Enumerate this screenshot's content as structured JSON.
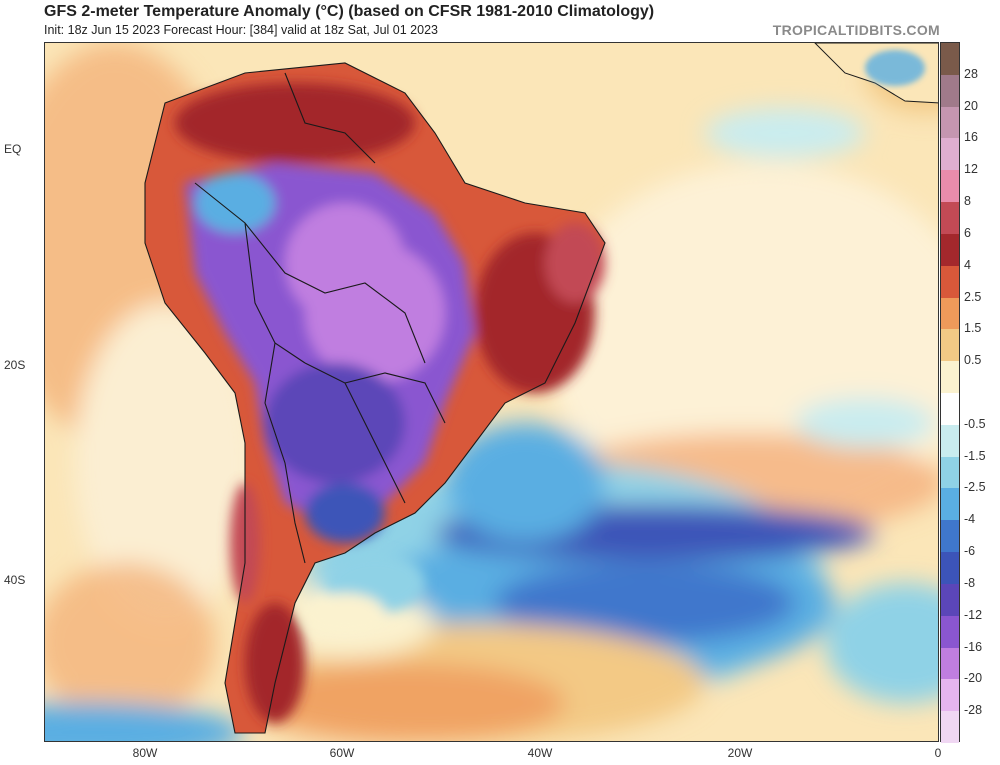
{
  "header": {
    "title": "GFS 2-meter Temperature Anomaly (°C) (based on CFSR 1981-2010 Climatology)",
    "subtitle": "Init: 18z Jun 15 2023   Forecast Hour: [384]   valid at 18z Sat, Jul 01 2023",
    "brand": "TROPICALTIDBITS.COM"
  },
  "map": {
    "lat_labels": [
      "EQ",
      "20S",
      "40S"
    ],
    "lon_labels": [
      "80W",
      "60W",
      "40W",
      "20W",
      "0"
    ]
  },
  "colorbar": {
    "labels": [
      "28",
      "20",
      "16",
      "12",
      "8",
      "6",
      "4",
      "2.5",
      "1.5",
      "0.5",
      "-0.5",
      "-1.5",
      "-2.5",
      "-4",
      "-6",
      "-8",
      "-12",
      "-16",
      "-20",
      "-28"
    ],
    "colors": [
      "#7a5a4a",
      "#a07a8a",
      "#c596b0",
      "#e0aed0",
      "#e98cab",
      "#c24a55",
      "#a3282c",
      "#d8583a",
      "#ef9a5a",
      "#f3c985",
      "#fbf2cf",
      "#ffffff",
      "#c9ecef",
      "#8fd2e6",
      "#5aaee2",
      "#3f77cc",
      "#3c54b8",
      "#5b46b8",
      "#8a56d0",
      "#c07ee0",
      "#e6b5ee",
      "#f0d7f3"
    ]
  }
}
